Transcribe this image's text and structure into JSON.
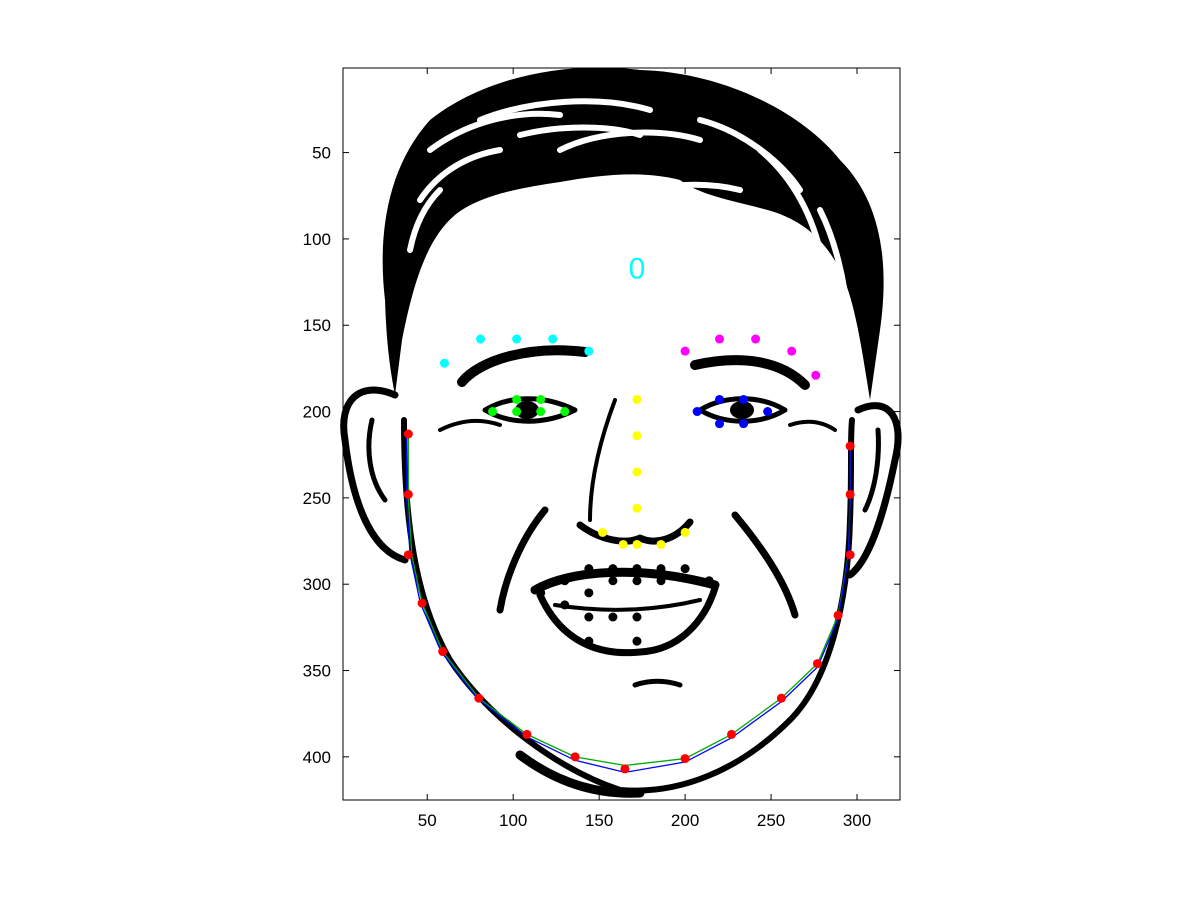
{
  "chart_data": {
    "type": "scatter",
    "title": "",
    "xlabel": "",
    "ylabel": "",
    "xlim": [
      1,
      325
    ],
    "ylim": [
      1,
      425
    ],
    "y_reversed": true,
    "grid": false,
    "x_ticks": [
      50,
      100,
      150,
      200,
      250,
      300
    ],
    "y_ticks": [
      50,
      100,
      150,
      200,
      250,
      300,
      350,
      400
    ],
    "background_image": "line-drawing-of-smiling-man-face",
    "annotation": {
      "text": "0",
      "x": 172,
      "y": 123,
      "color": "#00ffff"
    },
    "series": [
      {
        "color": "#ff0000",
        "points": [
          [
            39,
            213
          ],
          [
            39,
            248
          ],
          [
            39,
            283
          ],
          [
            47,
            311
          ],
          [
            59,
            339
          ],
          [
            80,
            366
          ],
          [
            108,
            387
          ],
          [
            136,
            400
          ],
          [
            165,
            407
          ],
          [
            200,
            401
          ],
          [
            227,
            387
          ],
          [
            256,
            366
          ],
          [
            277,
            346
          ],
          [
            289,
            318
          ],
          [
            296,
            283
          ],
          [
            296,
            248
          ],
          [
            296,
            220
          ]
        ]
      },
      {
        "color": "#00ffff",
        "points": [
          [
            60,
            172
          ],
          [
            81,
            158
          ],
          [
            102,
            158
          ],
          [
            123,
            158
          ],
          [
            144,
            165
          ]
        ]
      },
      {
        "color": "#ff00ff",
        "points": [
          [
            200,
            165
          ],
          [
            220,
            158
          ],
          [
            241,
            158
          ],
          [
            262,
            165
          ],
          [
            276,
            179
          ]
        ]
      },
      {
        "color": "#00ff00",
        "points": [
          [
            88,
            200
          ],
          [
            102,
            193
          ],
          [
            116,
            193
          ],
          [
            130,
            200
          ],
          [
            116,
            200
          ],
          [
            102,
            200
          ]
        ]
      },
      {
        "color": "#0000ff",
        "points": [
          [
            207,
            200
          ],
          [
            220,
            193
          ],
          [
            234,
            193
          ],
          [
            248,
            200
          ],
          [
            234,
            207
          ],
          [
            220,
            207
          ]
        ]
      },
      {
        "color": "#ffff00",
        "points": [
          [
            172,
            193
          ],
          [
            172,
            214
          ],
          [
            172,
            235
          ],
          [
            172,
            256
          ],
          [
            152,
            270
          ],
          [
            164,
            277
          ],
          [
            172,
            277
          ],
          [
            186,
            277
          ],
          [
            200,
            270
          ]
        ]
      },
      {
        "color": "#000000",
        "points": [
          [
            130,
            298
          ],
          [
            144,
            291
          ],
          [
            158,
            291
          ],
          [
            172,
            291
          ],
          [
            186,
            291
          ],
          [
            200,
            291
          ],
          [
            214,
            298
          ],
          [
            186,
            298
          ],
          [
            172,
            298
          ],
          [
            158,
            298
          ],
          [
            144,
            305
          ],
          [
            116,
            305
          ],
          [
            130,
            312
          ],
          [
            144,
            319
          ],
          [
            158,
            319
          ],
          [
            172,
            319
          ],
          [
            144,
            333
          ],
          [
            172,
            333
          ]
        ]
      }
    ],
    "curves": [
      {
        "color": "#00aa00",
        "points": [
          [
            39,
            213
          ],
          [
            39,
            250
          ],
          [
            41,
            283
          ],
          [
            47,
            311
          ],
          [
            59,
            339
          ],
          [
            80,
            366
          ],
          [
            108,
            387
          ],
          [
            136,
            400
          ],
          [
            165,
            405
          ],
          [
            200,
            401
          ],
          [
            227,
            387
          ],
          [
            256,
            366
          ],
          [
            277,
            346
          ],
          [
            289,
            318
          ],
          [
            295,
            283
          ],
          [
            296,
            250
          ],
          [
            296,
            220
          ]
        ]
      },
      {
        "color": "#0000ff",
        "points": [
          [
            38,
            213
          ],
          [
            38,
            250
          ],
          [
            40,
            283
          ],
          [
            46,
            311
          ],
          [
            58,
            339
          ],
          [
            79,
            366
          ],
          [
            107,
            388
          ],
          [
            136,
            402
          ],
          [
            165,
            409
          ],
          [
            200,
            403
          ],
          [
            227,
            389
          ],
          [
            256,
            368
          ],
          [
            277,
            348
          ],
          [
            289,
            320
          ],
          [
            295,
            284
          ],
          [
            296,
            250
          ],
          [
            296,
            220
          ]
        ]
      }
    ]
  }
}
